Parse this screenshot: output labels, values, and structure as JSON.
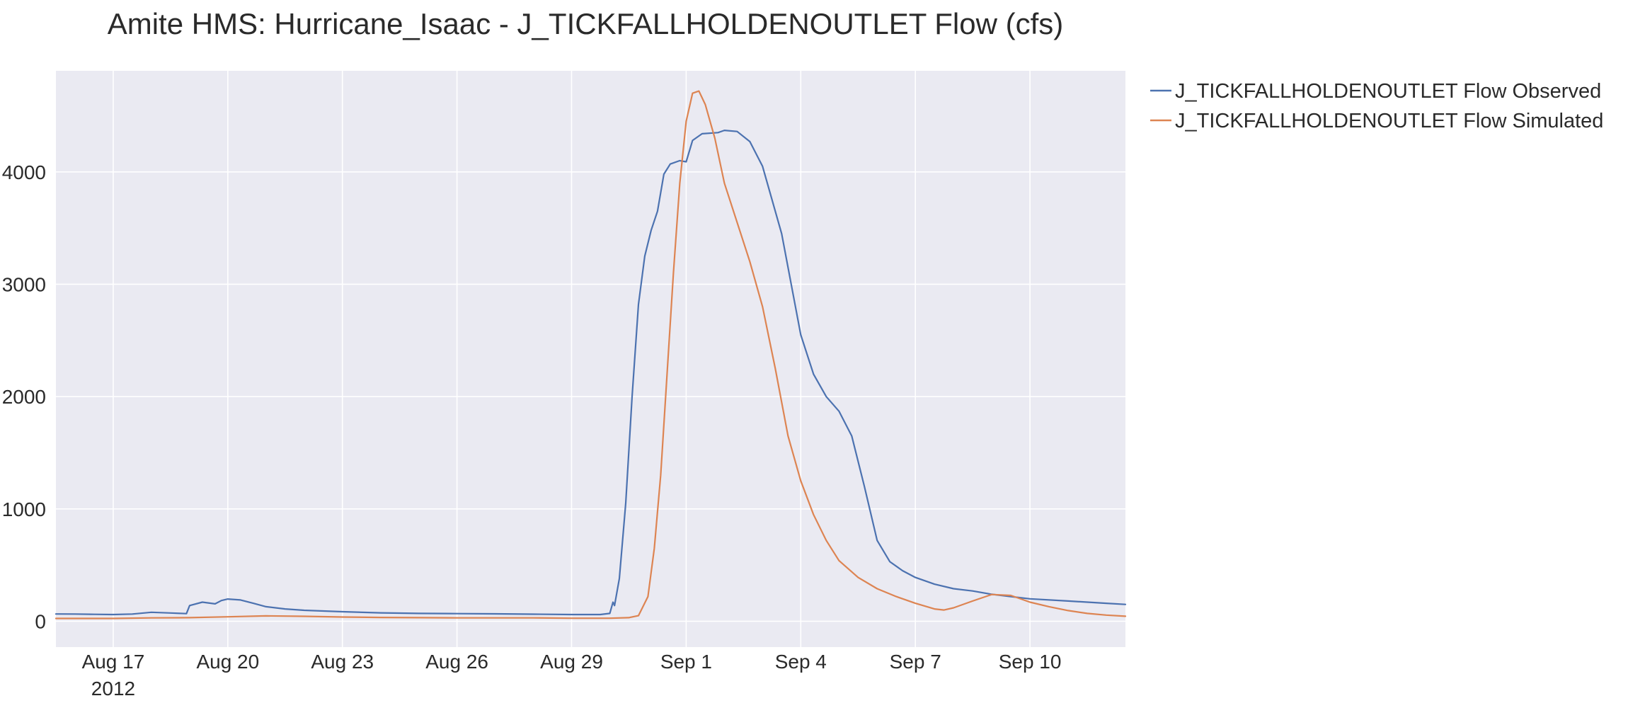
{
  "chart_data": {
    "type": "line",
    "title": "Amite HMS: Hurricane_Isaac - J_TICKFALLHOLDENOUTLET Flow (cfs)",
    "xlabel": "",
    "ylabel": "",
    "x_unit": "date",
    "xlim": [
      "2012-08-15 12:00",
      "2012-09-12 12:00"
    ],
    "ylim": [
      -230,
      4900
    ],
    "grid": true,
    "legend_position": "outside-top-right",
    "x_ticks": [
      {
        "date": "2012-08-17",
        "label": "Aug 17",
        "sublabel": "2012"
      },
      {
        "date": "2012-08-20",
        "label": "Aug 20",
        "sublabel": ""
      },
      {
        "date": "2012-08-23",
        "label": "Aug 23",
        "sublabel": ""
      },
      {
        "date": "2012-08-26",
        "label": "Aug 26",
        "sublabel": ""
      },
      {
        "date": "2012-08-29",
        "label": "Aug 29",
        "sublabel": ""
      },
      {
        "date": "2012-09-01",
        "label": "Sep 1",
        "sublabel": ""
      },
      {
        "date": "2012-09-04",
        "label": "Sep 4",
        "sublabel": ""
      },
      {
        "date": "2012-09-07",
        "label": "Sep 7",
        "sublabel": ""
      },
      {
        "date": "2012-09-10",
        "label": "Sep 10",
        "sublabel": ""
      }
    ],
    "y_ticks": [
      {
        "value": 0,
        "label": "0"
      },
      {
        "value": 1000,
        "label": "1000"
      },
      {
        "value": 2000,
        "label": "2000"
      },
      {
        "value": 3000,
        "label": "3000"
      },
      {
        "value": 4000,
        "label": "4000"
      }
    ],
    "colors": {
      "plot_background": "#eaeaf2",
      "grid": "#ffffff",
      "text": "#2a2a2a"
    },
    "series": [
      {
        "name": "J_TICKFALLHOLDENOUTLET Flow Observed",
        "color": "#4c72b0",
        "points": [
          [
            "2012-08-15 12:00",
            65
          ],
          [
            "2012-08-16 00:00",
            64
          ],
          [
            "2012-08-16 12:00",
            62
          ],
          [
            "2012-08-17 00:00",
            60
          ],
          [
            "2012-08-17 12:00",
            64
          ],
          [
            "2012-08-18 00:00",
            80
          ],
          [
            "2012-08-18 12:00",
            74
          ],
          [
            "2012-08-18 22:00",
            68
          ],
          [
            "2012-08-19 00:00",
            140
          ],
          [
            "2012-08-19 08:00",
            170
          ],
          [
            "2012-08-19 16:00",
            155
          ],
          [
            "2012-08-19 20:00",
            185
          ],
          [
            "2012-08-20 00:00",
            198
          ],
          [
            "2012-08-20 08:00",
            190
          ],
          [
            "2012-08-20 16:00",
            160
          ],
          [
            "2012-08-21 00:00",
            130
          ],
          [
            "2012-08-21 12:00",
            110
          ],
          [
            "2012-08-22 00:00",
            98
          ],
          [
            "2012-08-23 00:00",
            85
          ],
          [
            "2012-08-24 00:00",
            75
          ],
          [
            "2012-08-25 00:00",
            70
          ],
          [
            "2012-08-26 00:00",
            68
          ],
          [
            "2012-08-27 00:00",
            66
          ],
          [
            "2012-08-28 00:00",
            63
          ],
          [
            "2012-08-29 00:00",
            60
          ],
          [
            "2012-08-29 18:00",
            60
          ],
          [
            "2012-08-30 00:00",
            70
          ],
          [
            "2012-08-30 02:00",
            170
          ],
          [
            "2012-08-30 03:00",
            140
          ],
          [
            "2012-08-30 06:00",
            380
          ],
          [
            "2012-08-30 10:00",
            1050
          ],
          [
            "2012-08-30 14:00",
            2000
          ],
          [
            "2012-08-30 18:00",
            2820
          ],
          [
            "2012-08-30 22:00",
            3250
          ],
          [
            "2012-08-31 02:00",
            3480
          ],
          [
            "2012-08-31 06:00",
            3650
          ],
          [
            "2012-08-31 10:00",
            3980
          ],
          [
            "2012-08-31 14:00",
            4070
          ],
          [
            "2012-08-31 20:00",
            4100
          ],
          [
            "2012-09-01 00:00",
            4090
          ],
          [
            "2012-09-01 04:00",
            4280
          ],
          [
            "2012-09-01 10:00",
            4340
          ],
          [
            "2012-09-01 20:00",
            4350
          ],
          [
            "2012-09-02 00:00",
            4370
          ],
          [
            "2012-09-02 08:00",
            4360
          ],
          [
            "2012-09-02 16:00",
            4270
          ],
          [
            "2012-09-03 00:00",
            4050
          ],
          [
            "2012-09-03 12:00",
            3450
          ],
          [
            "2012-09-04 00:00",
            2550
          ],
          [
            "2012-09-04 08:00",
            2200
          ],
          [
            "2012-09-04 16:00",
            2000
          ],
          [
            "2012-09-05 00:00",
            1870
          ],
          [
            "2012-09-05 08:00",
            1650
          ],
          [
            "2012-09-05 16:00",
            1200
          ],
          [
            "2012-09-06 00:00",
            720
          ],
          [
            "2012-09-06 08:00",
            530
          ],
          [
            "2012-09-06 16:00",
            450
          ],
          [
            "2012-09-07 00:00",
            390
          ],
          [
            "2012-09-07 12:00",
            330
          ],
          [
            "2012-09-08 00:00",
            290
          ],
          [
            "2012-09-08 12:00",
            270
          ],
          [
            "2012-09-09 00:00",
            240
          ],
          [
            "2012-09-09 12:00",
            220
          ],
          [
            "2012-09-10 00:00",
            200
          ],
          [
            "2012-09-11 00:00",
            180
          ],
          [
            "2012-09-12 00:00",
            160
          ],
          [
            "2012-09-12 12:00",
            150
          ]
        ]
      },
      {
        "name": "J_TICKFALLHOLDENOUTLET Flow Simulated",
        "color": "#dd8452",
        "points": [
          [
            "2012-08-15 12:00",
            25
          ],
          [
            "2012-08-17 00:00",
            25
          ],
          [
            "2012-08-18 00:00",
            30
          ],
          [
            "2012-08-19 00:00",
            32
          ],
          [
            "2012-08-20 00:00",
            40
          ],
          [
            "2012-08-21 00:00",
            48
          ],
          [
            "2012-08-22 00:00",
            44
          ],
          [
            "2012-08-23 00:00",
            38
          ],
          [
            "2012-08-24 00:00",
            34
          ],
          [
            "2012-08-25 00:00",
            32
          ],
          [
            "2012-08-26 00:00",
            30
          ],
          [
            "2012-08-27 00:00",
            30
          ],
          [
            "2012-08-28 00:00",
            30
          ],
          [
            "2012-08-29 00:00",
            27
          ],
          [
            "2012-08-30 00:00",
            27
          ],
          [
            "2012-08-30 12:00",
            32
          ],
          [
            "2012-08-30 18:00",
            50
          ],
          [
            "2012-08-31 00:00",
            220
          ],
          [
            "2012-08-31 04:00",
            650
          ],
          [
            "2012-08-31 08:00",
            1300
          ],
          [
            "2012-08-31 12:00",
            2200
          ],
          [
            "2012-08-31 16:00",
            3100
          ],
          [
            "2012-08-31 20:00",
            3900
          ],
          [
            "2012-09-01 00:00",
            4450
          ],
          [
            "2012-09-01 04:00",
            4700
          ],
          [
            "2012-09-01 08:00",
            4720
          ],
          [
            "2012-09-01 12:00",
            4600
          ],
          [
            "2012-09-01 18:00",
            4300
          ],
          [
            "2012-09-02 00:00",
            3900
          ],
          [
            "2012-09-02 08:00",
            3550
          ],
          [
            "2012-09-02 16:00",
            3200
          ],
          [
            "2012-09-03 00:00",
            2800
          ],
          [
            "2012-09-03 08:00",
            2250
          ],
          [
            "2012-09-03 16:00",
            1650
          ],
          [
            "2012-09-04 00:00",
            1250
          ],
          [
            "2012-09-04 08:00",
            950
          ],
          [
            "2012-09-04 16:00",
            720
          ],
          [
            "2012-09-05 00:00",
            540
          ],
          [
            "2012-09-05 12:00",
            390
          ],
          [
            "2012-09-06 00:00",
            290
          ],
          [
            "2012-09-06 12:00",
            220
          ],
          [
            "2012-09-07 00:00",
            160
          ],
          [
            "2012-09-07 12:00",
            110
          ],
          [
            "2012-09-07 18:00",
            100
          ],
          [
            "2012-09-08 00:00",
            120
          ],
          [
            "2012-09-08 12:00",
            180
          ],
          [
            "2012-09-09 00:00",
            238
          ],
          [
            "2012-09-09 12:00",
            230
          ],
          [
            "2012-09-10 00:00",
            170
          ],
          [
            "2012-09-10 12:00",
            130
          ],
          [
            "2012-09-11 00:00",
            95
          ],
          [
            "2012-09-11 12:00",
            70
          ],
          [
            "2012-09-12 00:00",
            55
          ],
          [
            "2012-09-12 12:00",
            45
          ]
        ]
      }
    ]
  }
}
